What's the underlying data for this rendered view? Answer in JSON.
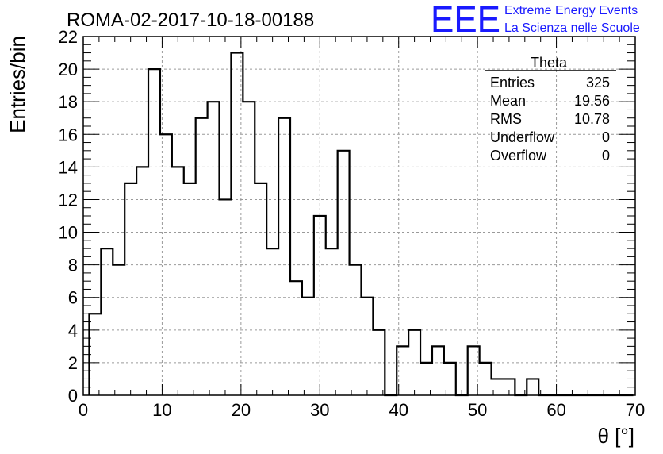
{
  "chart_data": {
    "type": "bar",
    "title": "ROMA-02-2017-10-18-00188",
    "xlabel": "θ [°]",
    "ylabel": "Entries/bin",
    "xlim": [
      0,
      70
    ],
    "ylim": [
      0,
      22
    ],
    "x_ticks": [
      "0",
      "10",
      "20",
      "30",
      "40",
      "50",
      "60",
      "70"
    ],
    "y_ticks": [
      "0",
      "2",
      "4",
      "6",
      "8",
      "10",
      "12",
      "14",
      "16",
      "18",
      "20",
      "22"
    ],
    "grid": true,
    "legend": "none",
    "bin_edges_start": 0.75,
    "bin_width": 1.5,
    "values": [
      5,
      9,
      8,
      13,
      14,
      20,
      16,
      14,
      13,
      17,
      18,
      12,
      21,
      18,
      13,
      9,
      17,
      7,
      6,
      11,
      9,
      15,
      8,
      6,
      4,
      0,
      3,
      4,
      2,
      3,
      2,
      0,
      3,
      2,
      1,
      1,
      0,
      1,
      0,
      0,
      0,
      0,
      0,
      0,
      0,
      0
    ],
    "stats_box": {
      "title": "Theta",
      "rows": [
        {
          "label": "Entries",
          "value": "325"
        },
        {
          "label": "Mean",
          "value": "19.56"
        },
        {
          "label": "RMS",
          "value": "10.78"
        },
        {
          "label": "Underflow",
          "value": "0"
        },
        {
          "label": "Overflow",
          "value": "0"
        }
      ]
    },
    "logo": {
      "text": "EEE",
      "line1": "Extreme Energy Events",
      "line2": "La Scienza nelle Scuole",
      "color": "#1a1aff"
    }
  }
}
